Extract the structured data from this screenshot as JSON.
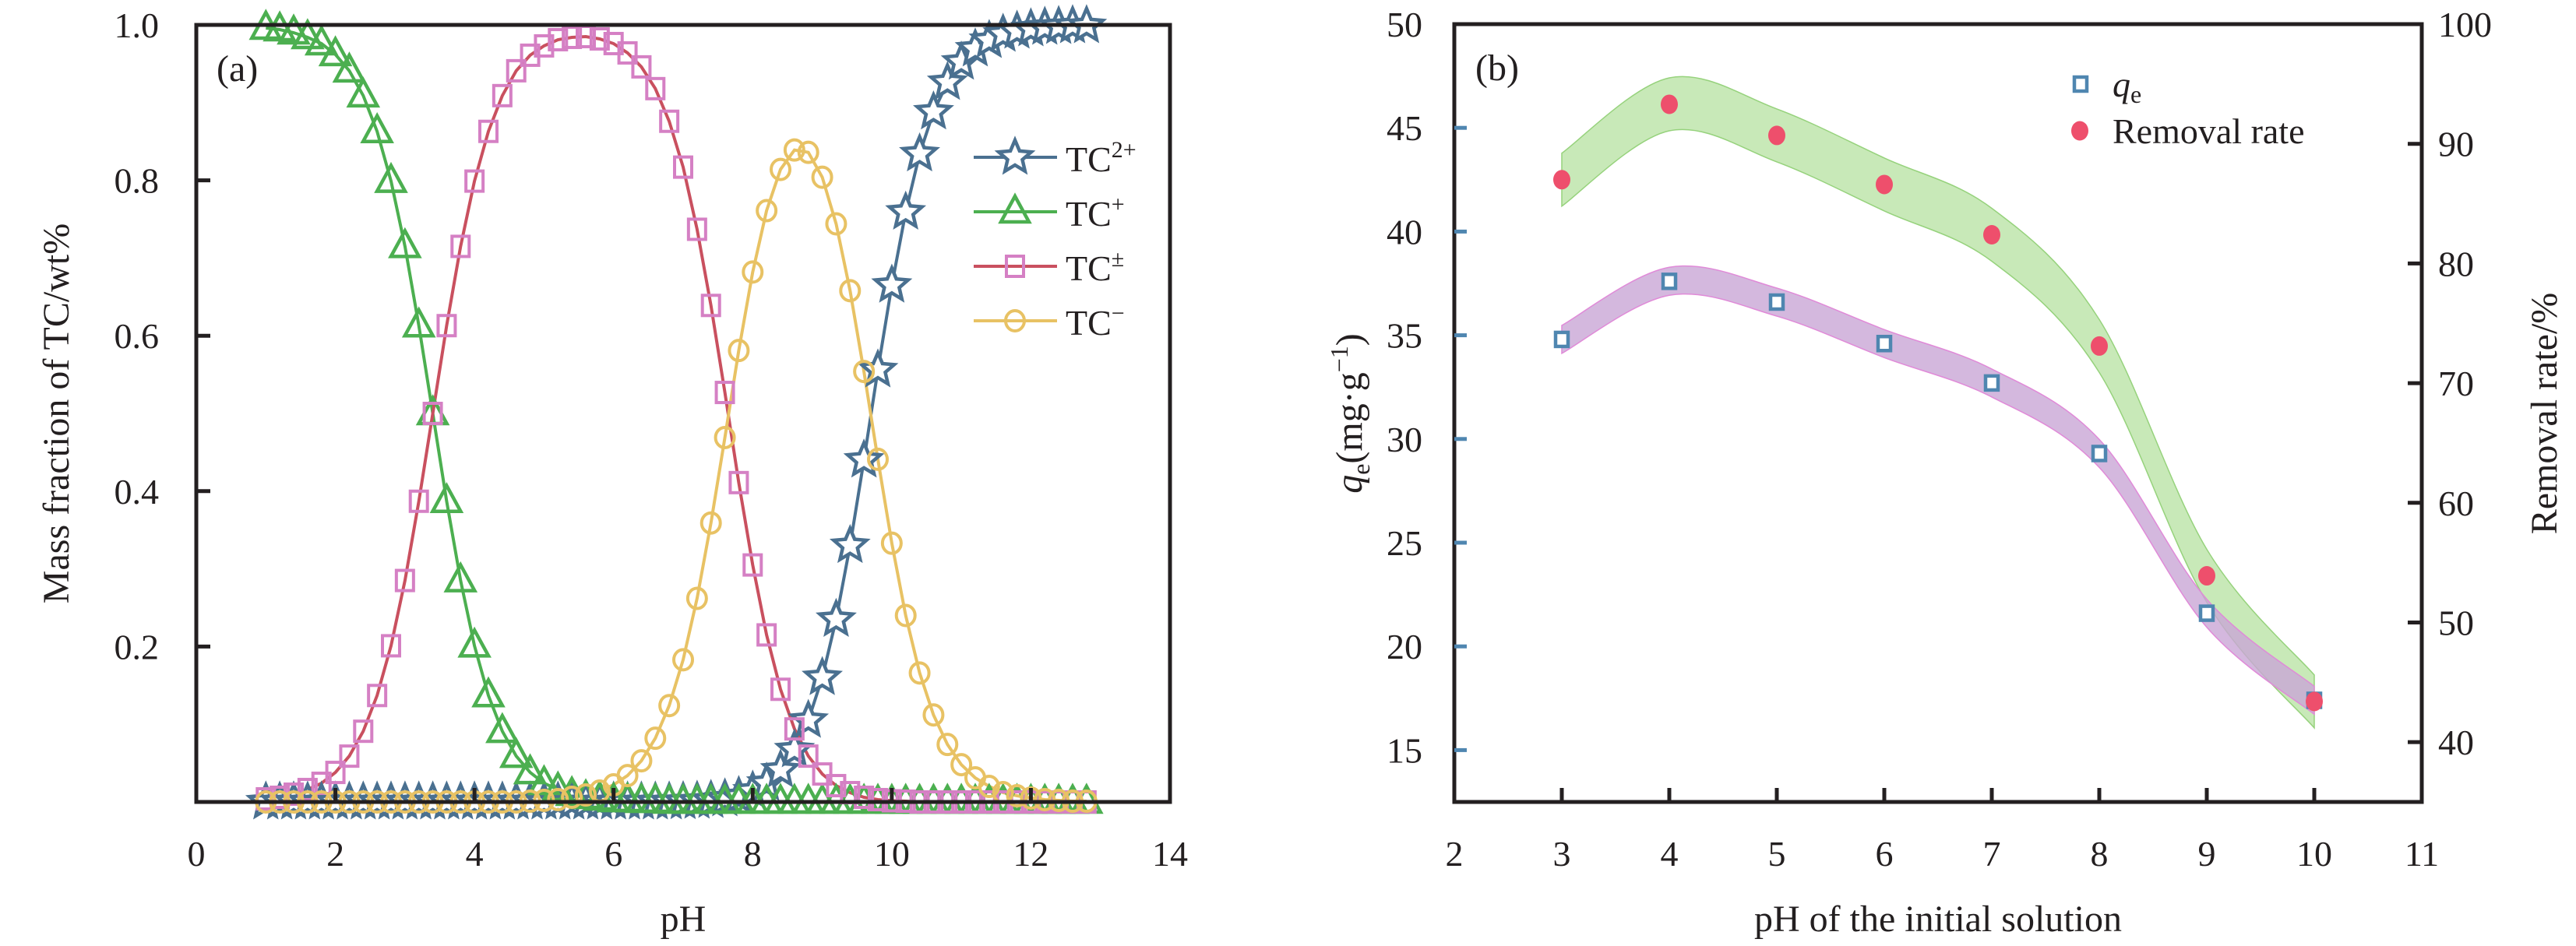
{
  "figure": {
    "panels": [
      "(a)",
      "(b)"
    ]
  },
  "chart_data": [
    {
      "type": "line",
      "panel_label": "(a)",
      "title": "",
      "xlabel": "pH",
      "ylabel": "Mass fraction of TC/wt%",
      "xlim": [
        0,
        14
      ],
      "ylim": [
        0,
        1.0
      ],
      "xticks": [
        "0",
        "2",
        "4",
        "6",
        "8",
        "10",
        "12",
        "14"
      ],
      "yticks": [
        "0.2",
        "0.4",
        "0.6",
        "0.8",
        "1.0"
      ],
      "grid": false,
      "legend_position": "right-middle",
      "x": [
        1.0,
        1.2,
        1.4,
        1.6,
        1.8,
        2.0,
        2.2,
        2.4,
        2.6,
        2.8,
        3.0,
        3.2,
        3.4,
        3.6,
        3.8,
        4.0,
        4.2,
        4.4,
        4.6,
        4.8,
        5.0,
        5.2,
        5.4,
        5.6,
        5.8,
        6.0,
        6.2,
        6.4,
        6.6,
        6.8,
        7.0,
        7.2,
        7.4,
        7.6,
        7.8,
        8.0,
        8.2,
        8.4,
        8.6,
        8.8,
        9.0,
        9.2,
        9.4,
        9.6,
        9.8,
        10.0,
        10.2,
        10.4,
        10.6,
        10.8,
        11.0,
        11.2,
        11.4,
        11.6,
        11.8,
        12.0,
        12.2,
        12.4,
        12.6,
        12.8
      ],
      "series": [
        {
          "name": "TC2+",
          "label_base": "TC",
          "label_sup": "2+",
          "marker": "star",
          "line_color": "#4a7090",
          "marker_color": "#4a7090",
          "values": [
            0,
            0,
            0,
            0,
            0,
            0,
            0,
            0,
            0,
            0,
            0,
            0,
            0,
            0,
            0,
            0,
            0,
            0,
            0,
            0,
            0,
            0,
            0,
            0,
            0,
            0,
            0,
            0,
            0,
            0,
            0.0004,
            0.001,
            0.002,
            0.004,
            0.007,
            0.014,
            0.024,
            0.041,
            0.067,
            0.105,
            0.16,
            0.235,
            0.33,
            0.44,
            0.556,
            0.665,
            0.759,
            0.834,
            0.888,
            0.926,
            0.952,
            0.969,
            0.98,
            0.988,
            0.992,
            0.995,
            0.997,
            0.998,
            0.999,
            0.999
          ]
        },
        {
          "name": "TC+",
          "label_base": "TC",
          "label_sup": "+",
          "marker": "triangle",
          "line_color": "#4caf50",
          "marker_color": "#4caf50",
          "values": [
            0.996,
            0.994,
            0.99,
            0.984,
            0.976,
            0.962,
            0.941,
            0.909,
            0.863,
            0.799,
            0.715,
            0.613,
            0.5,
            0.387,
            0.285,
            0.201,
            0.137,
            0.091,
            0.059,
            0.038,
            0.024,
            0.016,
            0.01,
            0.006,
            0.004,
            0.002,
            0.002,
            0.001,
            0.001,
            0,
            0,
            0,
            0,
            0,
            0,
            0,
            0,
            0,
            0,
            0,
            0,
            0,
            0,
            0,
            0,
            0,
            0,
            0,
            0,
            0,
            0,
            0,
            0,
            0,
            0,
            0,
            0,
            0,
            0,
            0
          ]
        },
        {
          "name": "TC±",
          "label_base": "TC",
          "label_sup": "±",
          "marker": "square",
          "line_color": "#c9505f",
          "marker_color": "#d580c4",
          "values": [
            0.004,
            0.006,
            0.01,
            0.016,
            0.024,
            0.038,
            0.059,
            0.091,
            0.137,
            0.201,
            0.285,
            0.387,
            0.5,
            0.613,
            0.715,
            0.799,
            0.863,
            0.909,
            0.941,
            0.961,
            0.973,
            0.981,
            0.984,
            0.985,
            0.982,
            0.976,
            0.964,
            0.946,
            0.918,
            0.876,
            0.817,
            0.737,
            0.639,
            0.527,
            0.411,
            0.305,
            0.215,
            0.145,
            0.094,
            0.059,
            0.036,
            0.021,
            0.012,
            0.006,
            0.003,
            0.0015,
            0.001,
            0,
            0,
            0,
            0,
            0,
            0,
            0,
            0,
            0,
            0,
            0,
            0,
            0
          ]
        },
        {
          "name": "TC−",
          "label_base": "TC",
          "label_sup": "−",
          "marker": "circle",
          "line_color": "#e8c264",
          "marker_color": "#e8c264",
          "values": [
            0,
            0,
            0,
            0,
            0,
            0,
            0,
            0,
            0,
            0,
            0,
            0,
            0,
            0,
            0,
            0,
            0,
            0,
            0,
            0.001,
            0.002,
            0.003,
            0.006,
            0.009,
            0.014,
            0.022,
            0.034,
            0.053,
            0.082,
            0.124,
            0.183,
            0.262,
            0.359,
            0.469,
            0.581,
            0.682,
            0.761,
            0.814,
            0.839,
            0.836,
            0.804,
            0.744,
            0.658,
            0.554,
            0.441,
            0.333,
            0.24,
            0.166,
            0.112,
            0.074,
            0.048,
            0.031,
            0.02,
            0.012,
            0.008,
            0.005,
            0.003,
            0.002,
            0.001,
            0.001
          ]
        }
      ]
    },
    {
      "type": "scatter",
      "panel_label": "(b)",
      "title": "",
      "xlabel": "pH of the initial solution",
      "ylabel_left": "qe(mg·g−1)",
      "ylabel_left_parts": {
        "q": "q",
        "sub": "e",
        "rest": "(mg·g",
        "sup": "−1",
        "close": ")"
      },
      "ylabel_right": "Removal rate/%",
      "xlim": [
        2,
        11
      ],
      "ylim_left": [
        12.5,
        50
      ],
      "ylim_right": [
        35,
        100
      ],
      "xticks": [
        "2",
        "3",
        "4",
        "5",
        "6",
        "7",
        "8",
        "9",
        "10",
        "11"
      ],
      "yticks_left": [
        "15",
        "20",
        "25",
        "30",
        "35",
        "40",
        "45",
        "50"
      ],
      "yticks_right": [
        "40",
        "50",
        "60",
        "70",
        "80",
        "90",
        "100"
      ],
      "grid": false,
      "legend_position": "top-right",
      "x": [
        3,
        4,
        5,
        6,
        7,
        8,
        9,
        10
      ],
      "series": [
        {
          "name": "qe",
          "label_q": "q",
          "label_sub": "e",
          "axis": "left",
          "marker": "open-square",
          "color": "#4f86b0",
          "band_color": "#c9a6d6",
          "band_edge": "#e08ad8",
          "values": [
            34.8,
            37.6,
            36.6,
            34.6,
            32.7,
            29.3,
            21.6,
            17.4
          ]
        },
        {
          "name": "Removal rate",
          "axis": "right",
          "marker": "filled-circle",
          "color": "#ee4f6c",
          "band_color": "#b5e2a0",
          "band_edge": "#96d27c",
          "values": [
            87.0,
            93.3,
            90.7,
            86.6,
            82.4,
            73.1,
            53.9,
            43.4
          ]
        }
      ]
    }
  ]
}
